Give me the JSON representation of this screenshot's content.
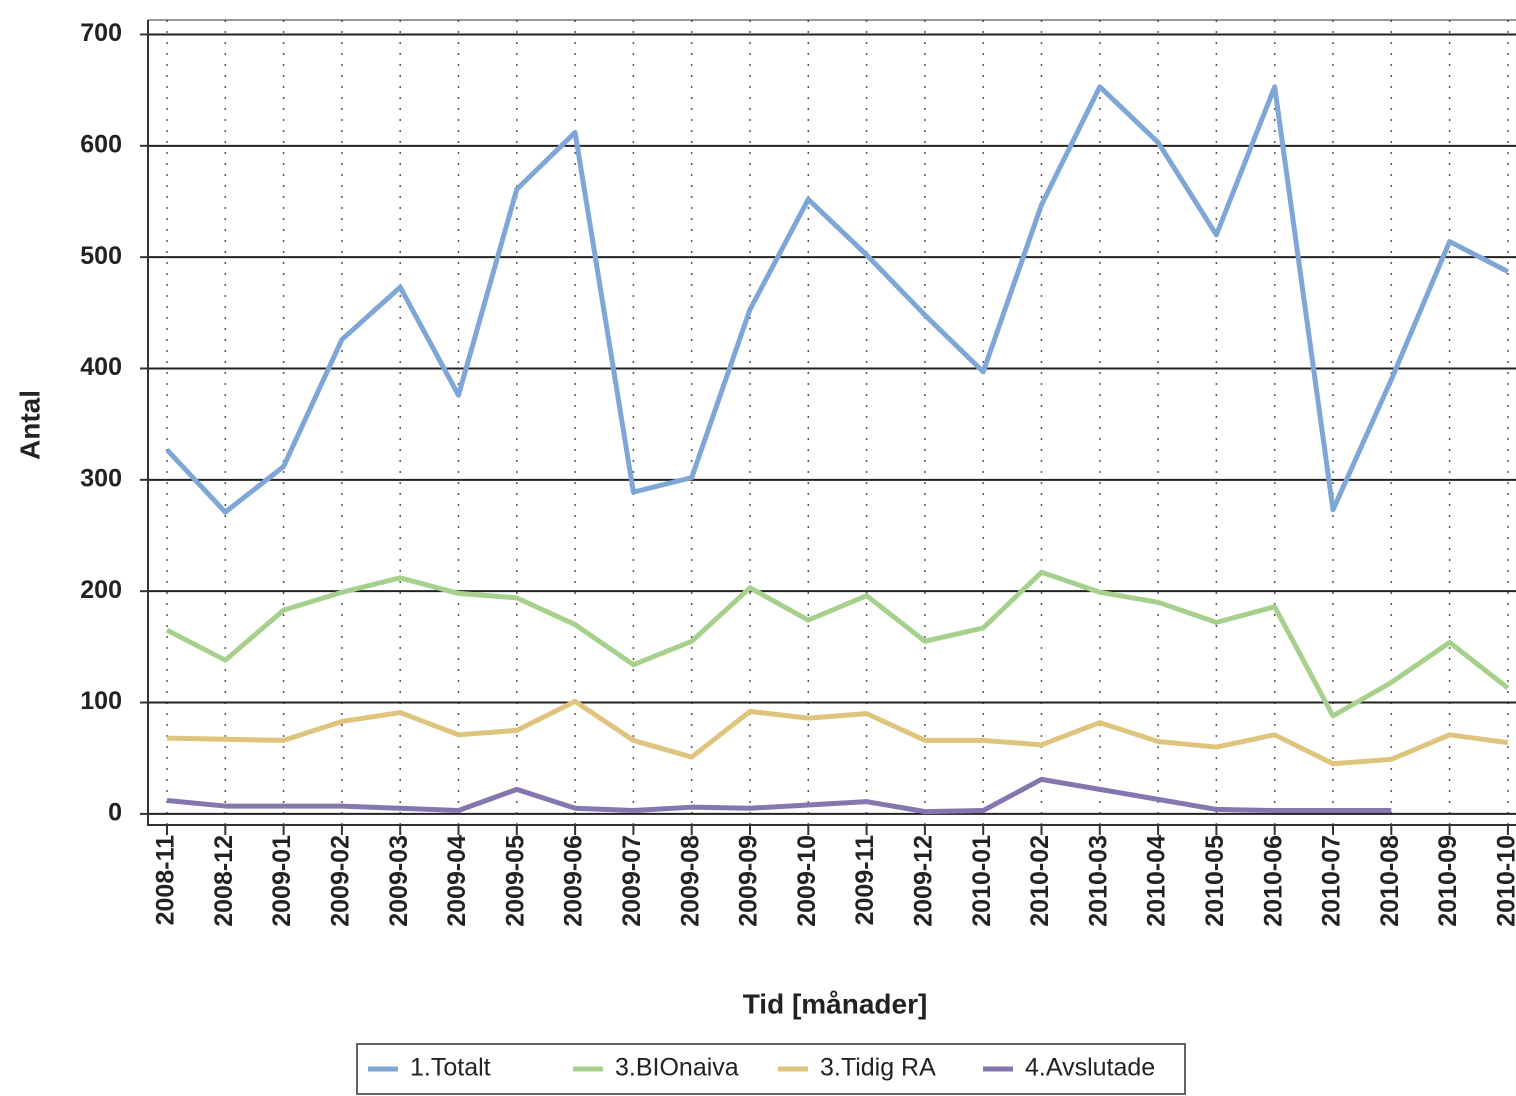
{
  "chart_data": {
    "type": "line",
    "x_label": "Tid [månader]",
    "y_label": "Antal",
    "categories": [
      "2008-11",
      "2008-12",
      "2009-01",
      "2009-02",
      "2009-03",
      "2009-04",
      "2009-05",
      "2009-06",
      "2009-07",
      "2009-08",
      "2009-09",
      "2009-10",
      "2009-11",
      "2009-12",
      "2010-01",
      "2010-02",
      "2010-03",
      "2010-04",
      "2010-05",
      "2010-06",
      "2010-07",
      "2010-08",
      "2010-09",
      "2010-10"
    ],
    "series": [
      {
        "name": "1.Totalt",
        "color": "#7ea6d6",
        "values": [
          327,
          271,
          312,
          426,
          473,
          376,
          561,
          612,
          289,
          302,
          453,
          552,
          502,
          448,
          397,
          547,
          653,
          603,
          520,
          653,
          273,
          390,
          514,
          487
        ]
      },
      {
        "name": "3.BIOnaiva",
        "color": "#a8d08d",
        "values": [
          165,
          138,
          183,
          199,
          212,
          198,
          194,
          170,
          134,
          155,
          203,
          174,
          196,
          155,
          167,
          217,
          199,
          190,
          172,
          186,
          88,
          118,
          154,
          113
        ]
      },
      {
        "name": "3.Tidig RA",
        "color": "#dec47c",
        "values": [
          68,
          67,
          66,
          83,
          91,
          71,
          75,
          101,
          66,
          51,
          92,
          86,
          90,
          66,
          66,
          62,
          82,
          65,
          60,
          71,
          45,
          49,
          71,
          64
        ]
      },
      {
        "name": "4.Avslutade",
        "color": "#8676b0",
        "values": [
          12,
          7,
          7,
          7,
          5,
          3,
          22,
          5,
          3,
          6,
          5,
          8,
          11,
          2,
          3,
          31,
          22,
          13,
          4,
          3,
          3,
          3,
          null,
          null
        ]
      }
    ],
    "ylim": [
      -10,
      713
    ],
    "yticks": [
      0,
      100,
      200,
      300,
      400,
      500,
      600,
      700
    ],
    "grid": true,
    "legend": "bottom"
  }
}
